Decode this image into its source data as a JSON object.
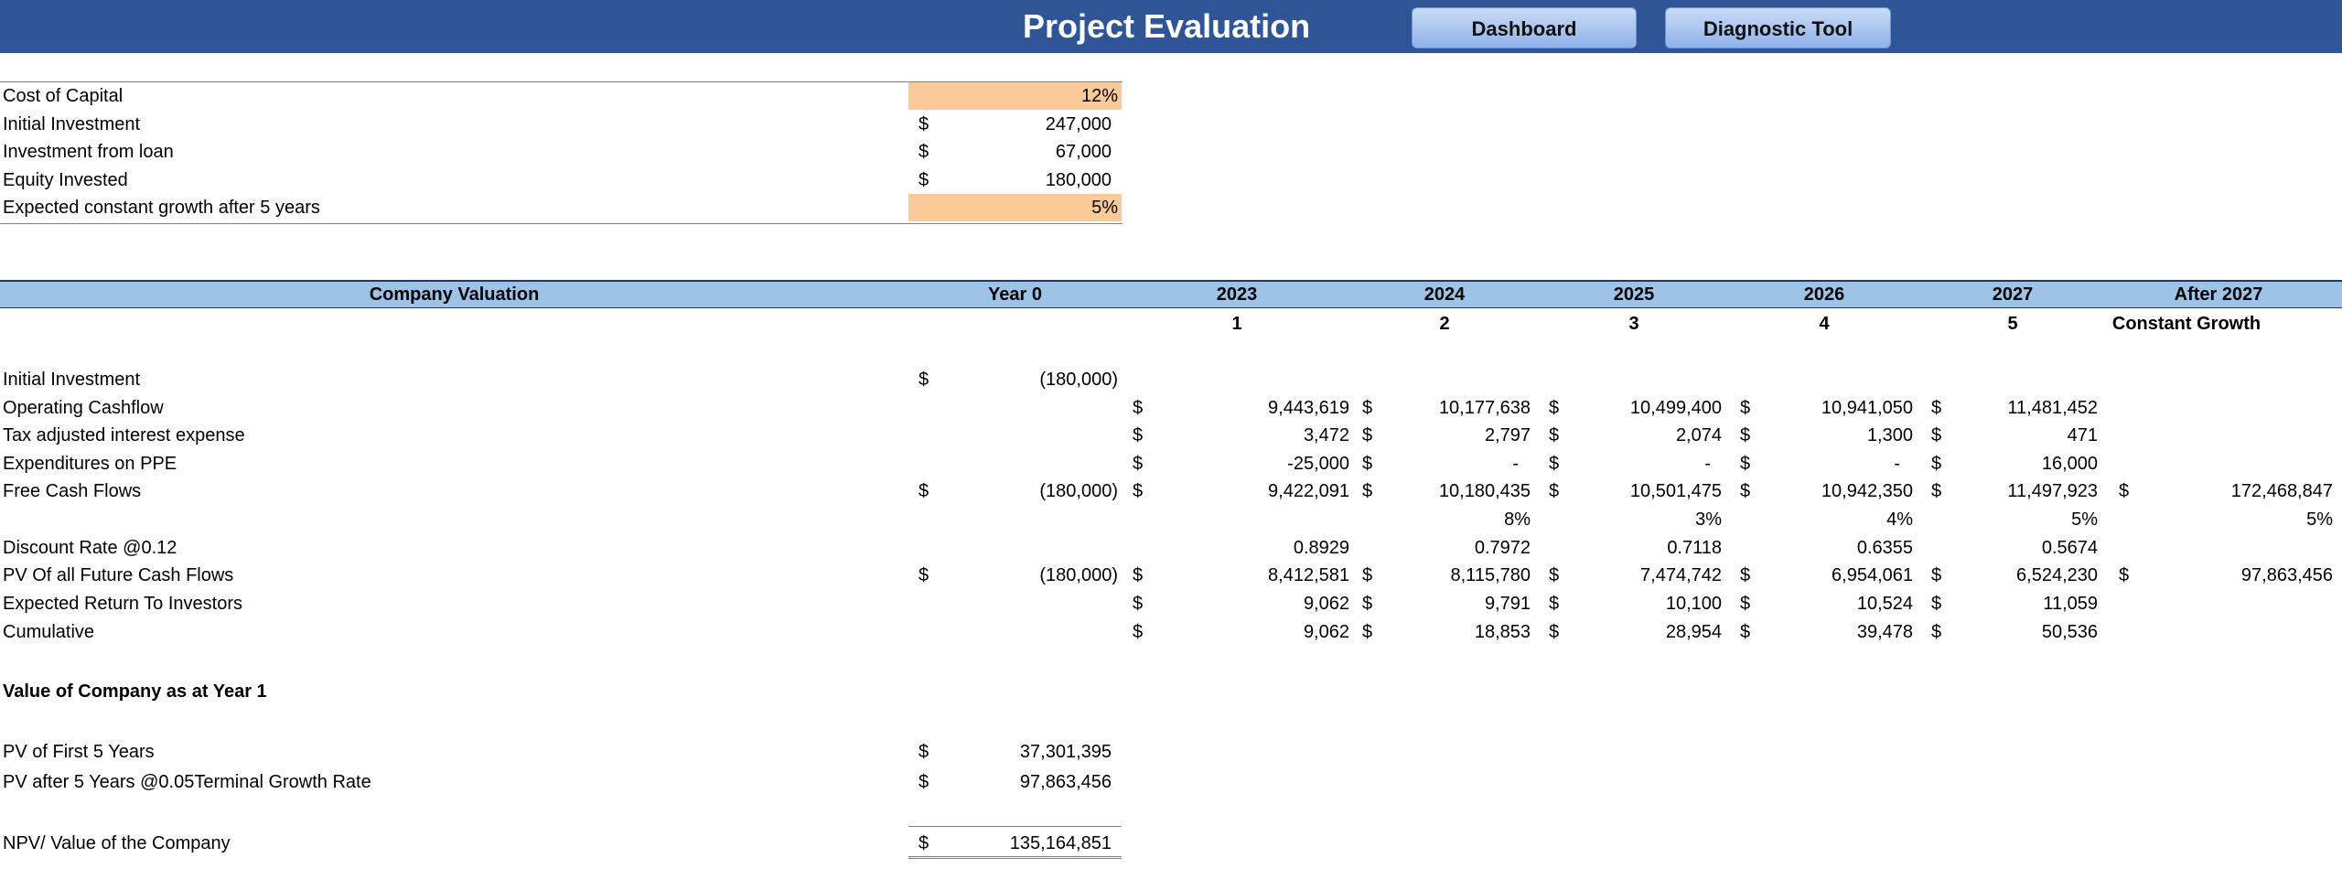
{
  "header": {
    "title": "Project Evaluation",
    "dashboard_label": "Dashboard",
    "diagnostic_label": "Diagnostic Tool"
  },
  "assumptions": [
    {
      "label": "Cost of Capital",
      "currency": "",
      "value": "12%"
    },
    {
      "label": "Initial Investment",
      "currency": "$",
      "value": "247,000"
    },
    {
      "label": "Investment from loan",
      "currency": "$",
      "value": "67,000"
    },
    {
      "label": "Equity Invested",
      "currency": "$",
      "value": "180,000"
    },
    {
      "label": "Expected constant growth after 5 years",
      "currency": "",
      "value": "5%"
    }
  ],
  "valuation": {
    "header": {
      "title": "Company Valuation",
      "columns": [
        "Year 0",
        "2023",
        "2024",
        "2025",
        "2026",
        "2027",
        "After 2027"
      ],
      "periods": [
        "1",
        "2",
        "3",
        "4",
        "5"
      ],
      "after_label": "Constant Growth"
    },
    "rows": {
      "initial_investment": {
        "label": "Initial Investment",
        "y0_cur": "$",
        "y0": "(180,000)"
      },
      "operating_cashflow": {
        "label": "Operating Cashflow",
        "cur": "$",
        "values": [
          "9,443,619",
          "10,177,638",
          "10,499,400",
          "10,941,050",
          "11,481,452"
        ]
      },
      "tax_interest": {
        "label": "Tax adjusted interest expense",
        "cur": "$",
        "values": [
          "3,472",
          "2,797",
          "2,074",
          "1,300",
          "471"
        ]
      },
      "ppe": {
        "label": "Expenditures on PPE",
        "cur": "$",
        "values": [
          "-25,000",
          "-",
          "-",
          "-",
          "16,000"
        ]
      },
      "fcf": {
        "label": "Free Cash Flows",
        "y0_cur": "$",
        "y0": "(180,000)",
        "cur": "$",
        "values": [
          "9,422,091",
          "10,180,435",
          "10,501,475",
          "10,942,350",
          "11,497,923"
        ],
        "after": "172,468,847"
      },
      "growth": {
        "values": [
          "8%",
          "3%",
          "4%",
          "5%"
        ],
        "after": "5%"
      },
      "discount": {
        "label": "Discount Rate @0.12",
        "values": [
          "0.8929",
          "0.7972",
          "0.7118",
          "0.6355",
          "0.5674"
        ]
      },
      "pv": {
        "label": "PV Of all Future Cash Flows",
        "y0_cur": "$",
        "y0": "(180,000)",
        "cur": "$",
        "values": [
          "8,412,581",
          "8,115,780",
          "7,474,742",
          "6,954,061",
          "6,524,230"
        ],
        "after": "97,863,456"
      },
      "expected_return": {
        "label": "Expected Return To Investors",
        "cur": "$",
        "values": [
          "9,062",
          "9,791",
          "10,100",
          "10,524",
          "11,059"
        ]
      },
      "cumulative": {
        "label": "Cumulative",
        "cur": "$",
        "values": [
          "9,062",
          "18,853",
          "28,954",
          "39,478",
          "50,536"
        ]
      }
    }
  },
  "summary": {
    "title": "Value of Company as at Year 1",
    "pv_first": {
      "label": "PV of First 5 Years",
      "cur": "$",
      "value": "37,301,395"
    },
    "pv_after": {
      "label": "PV after 5 Years @0.05Terminal Growth Rate",
      "cur": "$",
      "value": "97,863,456"
    },
    "npv": {
      "label": "NPV/ Value of the Company",
      "cur": "$",
      "value": "135,164,851"
    }
  }
}
